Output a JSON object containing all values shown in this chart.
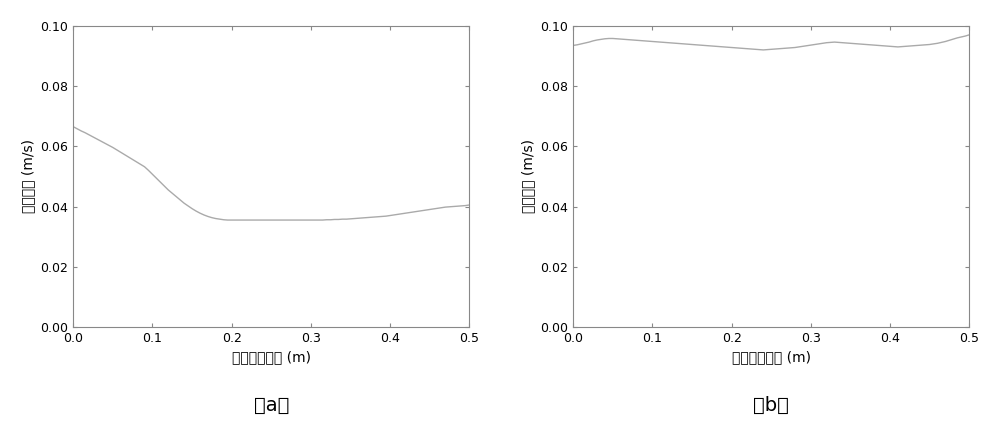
{
  "fig_width": 10.0,
  "fig_height": 4.28,
  "dpi": 100,
  "background_color": "#ffffff",
  "line_color": "#aaaaaa",
  "line_width": 1.0,
  "xlim": [
    0,
    0.5
  ],
  "ylim": [
    0,
    0.1
  ],
  "xticks": [
    0.0,
    0.1,
    0.2,
    0.3,
    0.4,
    0.5
  ],
  "yticks": [
    0.0,
    0.02,
    0.04,
    0.06,
    0.08,
    0.1
  ],
  "xlabel": "距离底面高度 (m)",
  "ylabel": "平均速度 (m/s)",
  "label_a": "（a）",
  "label_b": "（b）",
  "tick_fontsize": 9,
  "label_fontsize": 10,
  "caption_fontsize": 14,
  "plot_a_x": [
    0.0,
    0.005,
    0.01,
    0.015,
    0.02,
    0.025,
    0.03,
    0.035,
    0.04,
    0.045,
    0.05,
    0.055,
    0.06,
    0.065,
    0.07,
    0.075,
    0.08,
    0.085,
    0.09,
    0.095,
    0.1,
    0.105,
    0.11,
    0.115,
    0.12,
    0.125,
    0.13,
    0.135,
    0.14,
    0.145,
    0.15,
    0.155,
    0.16,
    0.165,
    0.17,
    0.175,
    0.18,
    0.185,
    0.19,
    0.195,
    0.2,
    0.205,
    0.21,
    0.215,
    0.22,
    0.225,
    0.23,
    0.235,
    0.24,
    0.245,
    0.25,
    0.255,
    0.26,
    0.265,
    0.27,
    0.275,
    0.28,
    0.285,
    0.29,
    0.295,
    0.3,
    0.305,
    0.31,
    0.315,
    0.32,
    0.325,
    0.33,
    0.335,
    0.34,
    0.345,
    0.35,
    0.355,
    0.36,
    0.365,
    0.37,
    0.375,
    0.38,
    0.385,
    0.39,
    0.395,
    0.4,
    0.405,
    0.41,
    0.415,
    0.42,
    0.425,
    0.43,
    0.435,
    0.44,
    0.445,
    0.45,
    0.455,
    0.46,
    0.465,
    0.47,
    0.475,
    0.48,
    0.485,
    0.49,
    0.495,
    0.5
  ],
  "plot_a_y": [
    0.0665,
    0.0658,
    0.0651,
    0.0645,
    0.0638,
    0.0631,
    0.0624,
    0.0617,
    0.061,
    0.0603,
    0.0596,
    0.0588,
    0.058,
    0.0572,
    0.0564,
    0.0556,
    0.0548,
    0.054,
    0.0532,
    0.052,
    0.0507,
    0.0494,
    0.0481,
    0.0468,
    0.0455,
    0.0444,
    0.0433,
    0.0422,
    0.0411,
    0.0402,
    0.0393,
    0.0385,
    0.0378,
    0.0372,
    0.0367,
    0.0363,
    0.036,
    0.0358,
    0.0356,
    0.0355,
    0.0355,
    0.0355,
    0.0355,
    0.0355,
    0.0355,
    0.0355,
    0.0355,
    0.0355,
    0.0355,
    0.0355,
    0.0355,
    0.0355,
    0.0355,
    0.0355,
    0.0355,
    0.0355,
    0.0355,
    0.0355,
    0.0355,
    0.0355,
    0.0355,
    0.0355,
    0.0355,
    0.0355,
    0.0356,
    0.0356,
    0.0357,
    0.0357,
    0.0358,
    0.0358,
    0.0359,
    0.036,
    0.0361,
    0.0362,
    0.0363,
    0.0364,
    0.0365,
    0.0366,
    0.0367,
    0.0368,
    0.037,
    0.0372,
    0.0374,
    0.0376,
    0.0378,
    0.038,
    0.0382,
    0.0384,
    0.0386,
    0.0388,
    0.039,
    0.0392,
    0.0394,
    0.0396,
    0.0398,
    0.0399,
    0.04,
    0.0401,
    0.0402,
    0.0403,
    0.0405
  ],
  "plot_b_x": [
    0.0,
    0.005,
    0.01,
    0.015,
    0.02,
    0.025,
    0.03,
    0.035,
    0.04,
    0.045,
    0.05,
    0.055,
    0.06,
    0.065,
    0.07,
    0.075,
    0.08,
    0.085,
    0.09,
    0.095,
    0.1,
    0.105,
    0.11,
    0.115,
    0.12,
    0.125,
    0.13,
    0.135,
    0.14,
    0.145,
    0.15,
    0.155,
    0.16,
    0.165,
    0.17,
    0.175,
    0.18,
    0.185,
    0.19,
    0.195,
    0.2,
    0.205,
    0.21,
    0.215,
    0.22,
    0.225,
    0.23,
    0.235,
    0.24,
    0.245,
    0.25,
    0.255,
    0.26,
    0.265,
    0.27,
    0.275,
    0.28,
    0.285,
    0.29,
    0.295,
    0.3,
    0.305,
    0.31,
    0.315,
    0.32,
    0.325,
    0.33,
    0.335,
    0.34,
    0.345,
    0.35,
    0.355,
    0.36,
    0.365,
    0.37,
    0.375,
    0.38,
    0.385,
    0.39,
    0.395,
    0.4,
    0.405,
    0.41,
    0.415,
    0.42,
    0.425,
    0.43,
    0.435,
    0.44,
    0.445,
    0.45,
    0.455,
    0.46,
    0.465,
    0.47,
    0.475,
    0.48,
    0.485,
    0.49,
    0.495,
    0.5
  ],
  "plot_b_y": [
    0.0935,
    0.0937,
    0.094,
    0.0943,
    0.0946,
    0.095,
    0.0953,
    0.0955,
    0.0957,
    0.0958,
    0.0958,
    0.0957,
    0.0956,
    0.0955,
    0.0954,
    0.0953,
    0.0952,
    0.0951,
    0.095,
    0.0949,
    0.0948,
    0.0947,
    0.0946,
    0.0945,
    0.0944,
    0.0943,
    0.0942,
    0.0941,
    0.094,
    0.0939,
    0.0938,
    0.0937,
    0.0936,
    0.0935,
    0.0934,
    0.0933,
    0.0932,
    0.0931,
    0.093,
    0.0929,
    0.0928,
    0.0927,
    0.0926,
    0.0925,
    0.0924,
    0.0923,
    0.0922,
    0.0921,
    0.092,
    0.0921,
    0.0922,
    0.0923,
    0.0924,
    0.0925,
    0.0926,
    0.0927,
    0.0928,
    0.093,
    0.0932,
    0.0934,
    0.0936,
    0.0938,
    0.094,
    0.0942,
    0.0944,
    0.0945,
    0.0946,
    0.0945,
    0.0944,
    0.0943,
    0.0942,
    0.0941,
    0.094,
    0.0939,
    0.0938,
    0.0937,
    0.0936,
    0.0935,
    0.0934,
    0.0933,
    0.0932,
    0.0931,
    0.093,
    0.0931,
    0.0932,
    0.0933,
    0.0934,
    0.0935,
    0.0936,
    0.0937,
    0.0938,
    0.094,
    0.0942,
    0.0945,
    0.0948,
    0.0952,
    0.0956,
    0.096,
    0.0963,
    0.0966,
    0.097
  ]
}
